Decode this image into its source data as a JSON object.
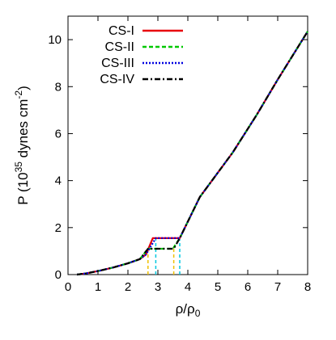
{
  "chart_data": {
    "type": "line",
    "title": "",
    "xlabel": "ρ/ρ",
    "xlabel_sub": "0",
    "ylabel_prefix": "P (10",
    "ylabel_exp": "35",
    "ylabel_mid": " dynes cm",
    "ylabel_exp2": "-2",
    "ylabel_suffix": ")",
    "xlim": [
      0,
      8
    ],
    "ylim": [
      0,
      11
    ],
    "xticks": [
      0,
      1,
      2,
      3,
      4,
      5,
      6,
      7,
      8
    ],
    "yticks": [
      0,
      2,
      4,
      6,
      8,
      10
    ],
    "grid": false,
    "legend_position": "top-left",
    "series": [
      {
        "name": "CS-I",
        "color": "#e8000b",
        "style": "solid",
        "x": [
          0.3,
          0.6,
          1.0,
          1.5,
          2.0,
          2.4,
          2.6,
          2.83,
          3.0,
          3.73,
          4.4,
          5.5,
          6.3,
          7.0,
          8.0
        ],
        "y": [
          0.0,
          0.05,
          0.15,
          0.3,
          0.48,
          0.66,
          0.85,
          1.55,
          1.55,
          1.55,
          3.3,
          5.2,
          6.8,
          8.3,
          10.35
        ]
      },
      {
        "name": "CS-II",
        "color": "#00c800",
        "style": "dashed",
        "x": [
          0.3,
          0.6,
          1.0,
          1.5,
          2.0,
          2.4,
          2.67,
          3.0,
          3.5,
          3.73,
          4.4,
          5.5,
          6.3,
          7.0,
          8.0
        ],
        "y": [
          0.0,
          0.05,
          0.15,
          0.3,
          0.48,
          0.66,
          1.1,
          1.1,
          1.1,
          1.55,
          3.3,
          5.2,
          6.8,
          8.3,
          10.35
        ]
      },
      {
        "name": "CS-III",
        "color": "#0000e0",
        "style": "dotted",
        "x": [
          0.3,
          0.6,
          1.0,
          1.5,
          2.0,
          2.4,
          2.6,
          2.93,
          3.5,
          3.73,
          4.4,
          5.5,
          6.3,
          7.0,
          8.0
        ],
        "y": [
          0.0,
          0.05,
          0.15,
          0.3,
          0.48,
          0.66,
          0.85,
          1.55,
          1.55,
          1.55,
          3.3,
          5.2,
          6.8,
          8.3,
          10.35
        ]
      },
      {
        "name": "CS-IV",
        "color": "#000000",
        "style": "dashdot",
        "x": [
          0.3,
          0.6,
          1.0,
          1.5,
          2.0,
          2.4,
          2.67,
          3.0,
          3.53,
          3.73,
          4.4,
          5.5,
          6.3,
          7.0,
          8.0
        ],
        "y": [
          0.0,
          0.05,
          0.15,
          0.3,
          0.48,
          0.66,
          1.1,
          1.1,
          1.1,
          1.55,
          3.3,
          5.2,
          6.8,
          8.3,
          10.35
        ]
      }
    ],
    "guide_lines": [
      {
        "x": 2.67,
        "y_top": 1.1,
        "color": "#f0c000"
      },
      {
        "x": 2.93,
        "y_top": 1.55,
        "color": "#00c8e0"
      },
      {
        "x": 3.53,
        "y_top": 1.1,
        "color": "#f0c000"
      },
      {
        "x": 3.73,
        "y_top": 1.55,
        "color": "#00c8e0"
      }
    ]
  }
}
